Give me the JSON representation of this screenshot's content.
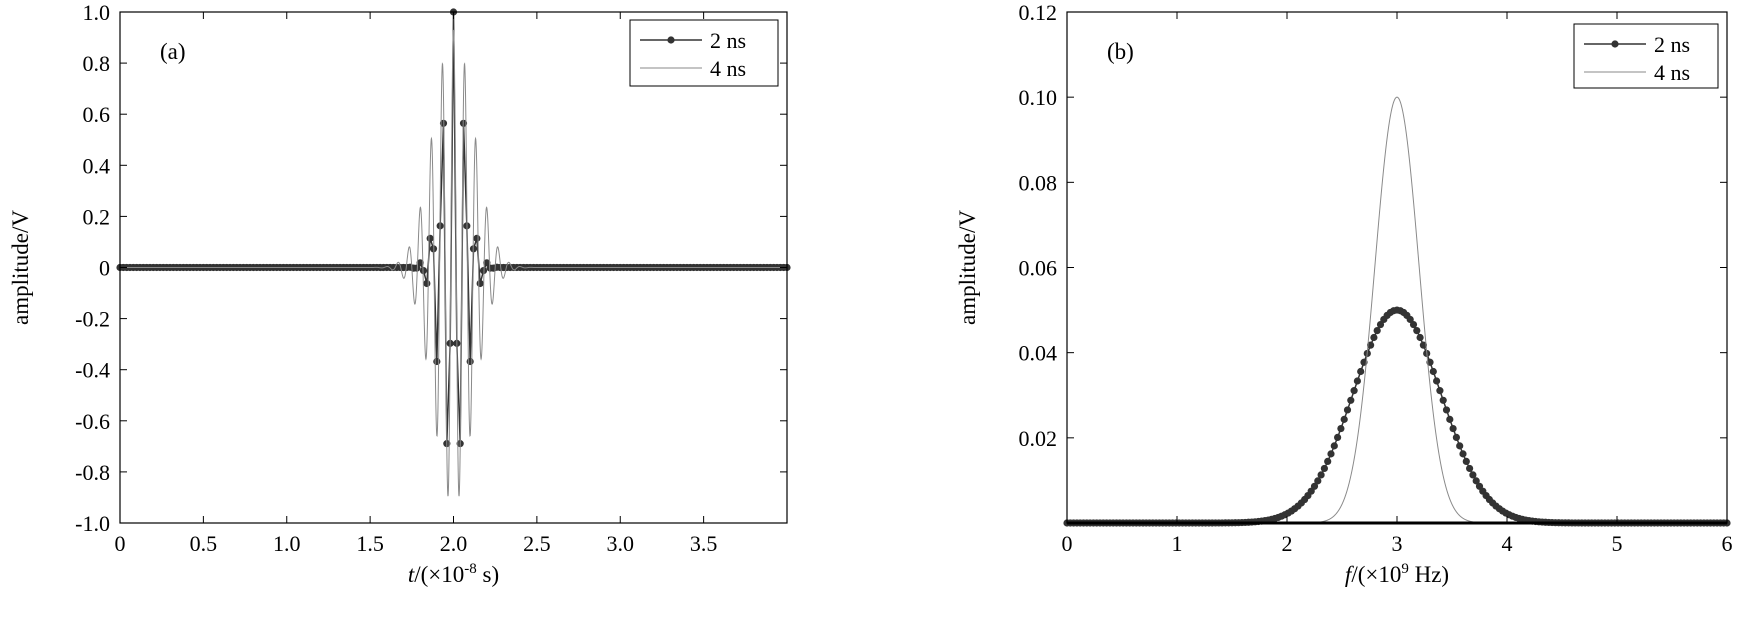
{
  "chart_data": [
    {
      "type": "line",
      "panel_label": "(a)",
      "xlabel_italic": "t",
      "xlabel_pre": "/(×10",
      "xlabel_sup": "-8",
      "xlabel_post": " s)",
      "ylabel": "amplitude/V",
      "xlim": [
        0,
        4.0
      ],
      "ylim": [
        -1.0,
        1.0
      ],
      "xticks": [
        0,
        0.5,
        1.0,
        1.5,
        2.0,
        2.5,
        3.0,
        3.5
      ],
      "xtick_labels": [
        "0",
        "0.5",
        "1.0",
        "1.5",
        "2.0",
        "2.5",
        "3.0",
        "3.5"
      ],
      "yticks": [
        -1.0,
        -0.8,
        -0.6,
        -0.4,
        -0.2,
        0,
        0.2,
        0.4,
        0.6,
        0.8,
        1.0
      ],
      "ytick_labels": [
        "-1.0",
        "-0.8",
        "-0.6",
        "-0.4",
        "-0.2",
        "0",
        "0.2",
        "0.4",
        "0.6",
        "0.8",
        "1.0"
      ],
      "legend_position": "top-right",
      "series": [
        {
          "name": "2 ns",
          "style": "dotted-marker",
          "center": 2.0,
          "half_width": 0.1,
          "carrier_freq": 15,
          "peak": 1.0,
          "sample_step": 0.02,
          "sample_offset": 0.0
        },
        {
          "name": "4 ns",
          "style": "thin",
          "center": 2.0,
          "half_width": 0.17,
          "carrier_freq": 15,
          "peak": 0.93
        }
      ]
    },
    {
      "type": "line",
      "panel_label": "(b)",
      "xlabel_italic": "f",
      "xlabel_pre": "/(×10",
      "xlabel_sup": "9",
      "xlabel_post": " Hz)",
      "ylabel": "amplitude/V",
      "xlim": [
        0,
        6
      ],
      "ylim": [
        0,
        0.12
      ],
      "xticks": [
        0,
        1,
        2,
        3,
        4,
        5,
        6
      ],
      "xtick_labels": [
        "0",
        "1",
        "2",
        "3",
        "4",
        "5",
        "6"
      ],
      "yticks": [
        0.02,
        0.04,
        0.06,
        0.08,
        0.1,
        0.12
      ],
      "ytick_labels": [
        "0.02",
        "0.04",
        "0.06",
        "0.08",
        "0.10",
        "0.12"
      ],
      "legend_position": "top-right",
      "series": [
        {
          "name": "2 ns",
          "style": "dotted-marker",
          "center": 3.0,
          "sigma": 0.4,
          "peak": 0.05,
          "sample_step": 0.03
        },
        {
          "name": "4 ns",
          "style": "thin",
          "center": 3.0,
          "sigma": 0.2,
          "peak": 0.1
        }
      ]
    }
  ]
}
